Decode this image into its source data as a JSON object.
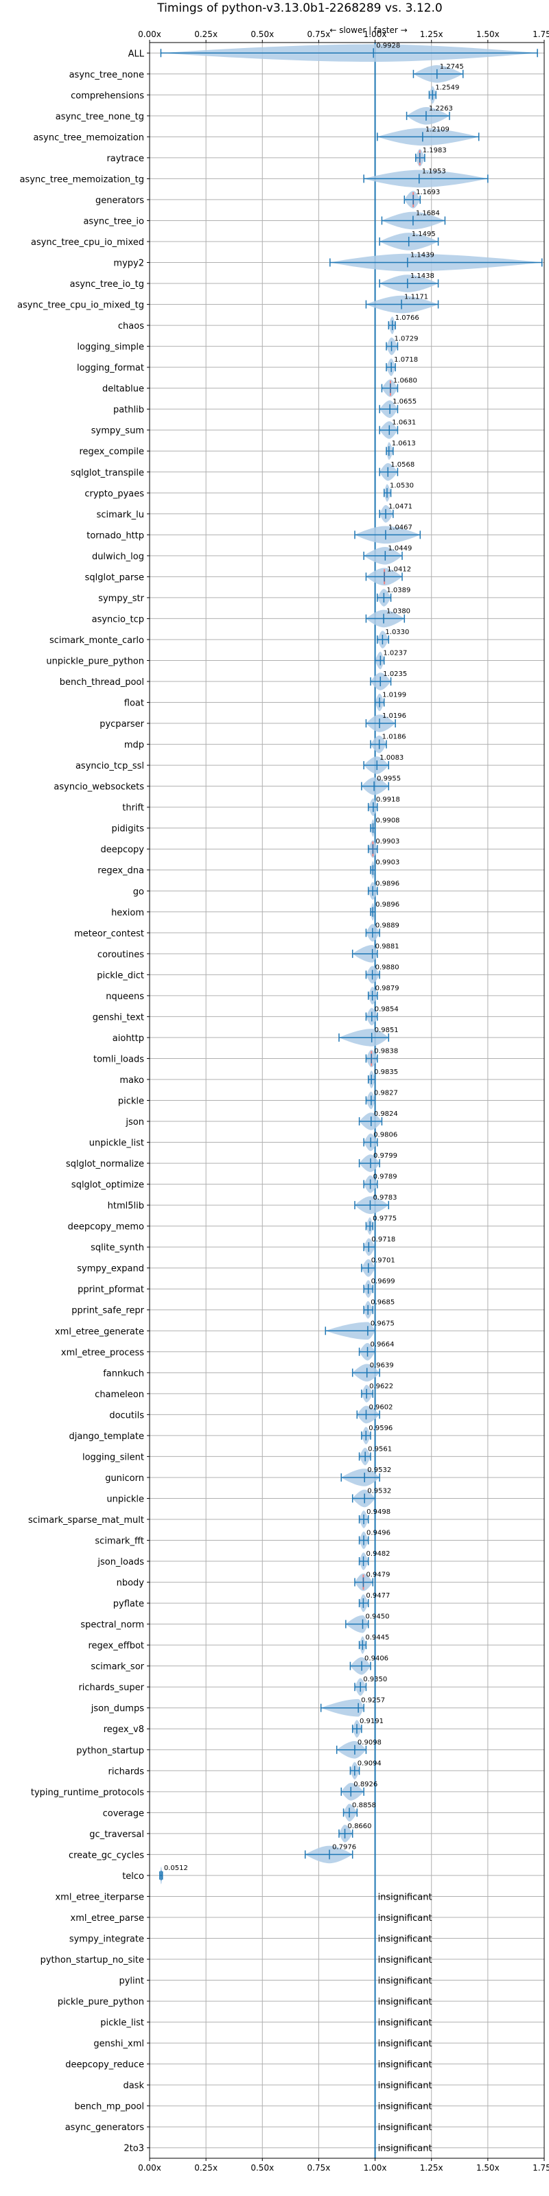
{
  "chart_data": {
    "type": "violin",
    "title": "Timings of python-v3.13.0b1-2268289 vs. 3.12.0",
    "direction_label": "← slower | faster →",
    "xlim": [
      0.0,
      1.75
    ],
    "x_ticks": [
      0.0,
      0.25,
      0.5,
      0.75,
      1.0,
      1.25,
      1.5,
      1.75
    ],
    "x_tick_labels": [
      "0.00x",
      "0.25x",
      "0.50x",
      "0.75x",
      "1.00x",
      "1.25x",
      "1.50x",
      "1.75x"
    ],
    "grid": true,
    "reference_line": 1.0,
    "benchmarks": [
      {
        "name": "ALL",
        "value": 0.9928,
        "min": 0.05,
        "max": 1.72,
        "label": "0.9928"
      },
      {
        "name": "async_tree_none",
        "value": 1.2745,
        "min": 1.17,
        "max": 1.39,
        "label": "1.2745"
      },
      {
        "name": "comprehensions",
        "value": 1.2549,
        "min": 1.24,
        "max": 1.27,
        "label": "1.2549"
      },
      {
        "name": "async_tree_none_tg",
        "value": 1.2263,
        "min": 1.14,
        "max": 1.33,
        "label": "1.2263"
      },
      {
        "name": "async_tree_memoization",
        "value": 1.2109,
        "min": 1.01,
        "max": 1.46,
        "label": "1.2109"
      },
      {
        "name": "raytrace",
        "value": 1.1983,
        "min": 1.18,
        "max": 1.22,
        "label": "1.1983"
      },
      {
        "name": "async_tree_memoization_tg",
        "value": 1.1953,
        "min": 0.95,
        "max": 1.5,
        "label": "1.1953"
      },
      {
        "name": "generators",
        "value": 1.1693,
        "min": 1.13,
        "max": 1.2,
        "label": "1.1693"
      },
      {
        "name": "async_tree_io",
        "value": 1.1684,
        "min": 1.03,
        "max": 1.31,
        "label": "1.1684"
      },
      {
        "name": "async_tree_cpu_io_mixed",
        "value": 1.1495,
        "min": 1.02,
        "max": 1.28,
        "label": "1.1495"
      },
      {
        "name": "mypy2",
        "value": 1.1439,
        "min": 0.8,
        "max": 1.74,
        "label": "1.1439"
      },
      {
        "name": "async_tree_io_tg",
        "value": 1.1438,
        "min": 1.02,
        "max": 1.28,
        "label": "1.1438"
      },
      {
        "name": "async_tree_cpu_io_mixed_tg",
        "value": 1.1171,
        "min": 0.96,
        "max": 1.28,
        "label": "1.1171"
      },
      {
        "name": "chaos",
        "value": 1.0766,
        "min": 1.06,
        "max": 1.09,
        "label": "1.0766"
      },
      {
        "name": "logging_simple",
        "value": 1.0729,
        "min": 1.05,
        "max": 1.1,
        "label": "1.0729"
      },
      {
        "name": "logging_format",
        "value": 1.0718,
        "min": 1.05,
        "max": 1.09,
        "label": "1.0718"
      },
      {
        "name": "deltablue",
        "value": 1.068,
        "min": 1.03,
        "max": 1.1,
        "label": "1.0680"
      },
      {
        "name": "pathlib",
        "value": 1.0655,
        "min": 1.02,
        "max": 1.1,
        "label": "1.0655"
      },
      {
        "name": "sympy_sum",
        "value": 1.0631,
        "min": 1.02,
        "max": 1.1,
        "label": "1.0631"
      },
      {
        "name": "regex_compile",
        "value": 1.0613,
        "min": 1.05,
        "max": 1.08,
        "label": "1.0613"
      },
      {
        "name": "sqlglot_transpile",
        "value": 1.0568,
        "min": 1.02,
        "max": 1.1,
        "label": "1.0568"
      },
      {
        "name": "crypto_pyaes",
        "value": 1.053,
        "min": 1.04,
        "max": 1.07,
        "label": "1.0530"
      },
      {
        "name": "scimark_lu",
        "value": 1.0471,
        "min": 1.02,
        "max": 1.08,
        "label": "1.0471"
      },
      {
        "name": "tornado_http",
        "value": 1.0467,
        "min": 0.91,
        "max": 1.2,
        "label": "1.0467"
      },
      {
        "name": "dulwich_log",
        "value": 1.0449,
        "min": 0.95,
        "max": 1.12,
        "label": "1.0449"
      },
      {
        "name": "sqlglot_parse",
        "value": 1.0412,
        "min": 0.96,
        "max": 1.12,
        "label": "1.0412"
      },
      {
        "name": "sympy_str",
        "value": 1.0389,
        "min": 1.01,
        "max": 1.07,
        "label": "1.0389"
      },
      {
        "name": "asyncio_tcp",
        "value": 1.038,
        "min": 0.96,
        "max": 1.13,
        "label": "1.0380"
      },
      {
        "name": "scimark_monte_carlo",
        "value": 1.033,
        "min": 1.01,
        "max": 1.06,
        "label": "1.0330"
      },
      {
        "name": "unpickle_pure_python",
        "value": 1.0237,
        "min": 1.0,
        "max": 1.04,
        "label": "1.0237"
      },
      {
        "name": "bench_thread_pool",
        "value": 1.0235,
        "min": 0.98,
        "max": 1.07,
        "label": "1.0235"
      },
      {
        "name": "float",
        "value": 1.0199,
        "min": 1.0,
        "max": 1.04,
        "label": "1.0199"
      },
      {
        "name": "pycparser",
        "value": 1.0196,
        "min": 0.96,
        "max": 1.09,
        "label": "1.0196"
      },
      {
        "name": "mdp",
        "value": 1.0186,
        "min": 0.98,
        "max": 1.05,
        "label": "1.0186"
      },
      {
        "name": "asyncio_tcp_ssl",
        "value": 1.0083,
        "min": 0.95,
        "max": 1.06,
        "label": "1.0083"
      },
      {
        "name": "asyncio_websockets",
        "value": 0.9955,
        "min": 0.94,
        "max": 1.06,
        "label": "0.9955"
      },
      {
        "name": "thrift",
        "value": 0.9918,
        "min": 0.97,
        "max": 1.01,
        "label": "0.9918"
      },
      {
        "name": "pidigits",
        "value": 0.9908,
        "min": 0.98,
        "max": 1.0,
        "label": "0.9908"
      },
      {
        "name": "deepcopy",
        "value": 0.9903,
        "min": 0.97,
        "max": 1.01,
        "label": "0.9903"
      },
      {
        "name": "regex_dna",
        "value": 0.9903,
        "min": 0.98,
        "max": 1.0,
        "label": "0.9903"
      },
      {
        "name": "go",
        "value": 0.9896,
        "min": 0.97,
        "max": 1.01,
        "label": "0.9896"
      },
      {
        "name": "hexiom",
        "value": 0.9896,
        "min": 0.98,
        "max": 1.0,
        "label": "0.9896"
      },
      {
        "name": "meteor_contest",
        "value": 0.9889,
        "min": 0.96,
        "max": 1.02,
        "label": "0.9889"
      },
      {
        "name": "coroutines",
        "value": 0.9881,
        "min": 0.9,
        "max": 1.01,
        "label": "0.9881"
      },
      {
        "name": "pickle_dict",
        "value": 0.988,
        "min": 0.96,
        "max": 1.02,
        "label": "0.9880"
      },
      {
        "name": "nqueens",
        "value": 0.9879,
        "min": 0.97,
        "max": 1.01,
        "label": "0.9879"
      },
      {
        "name": "genshi_text",
        "value": 0.9854,
        "min": 0.96,
        "max": 1.01,
        "label": "0.9854"
      },
      {
        "name": "aiohttp",
        "value": 0.9851,
        "min": 0.84,
        "max": 1.06,
        "label": "0.9851"
      },
      {
        "name": "tomli_loads",
        "value": 0.9838,
        "min": 0.96,
        "max": 1.01,
        "label": "0.9838"
      },
      {
        "name": "mako",
        "value": 0.9835,
        "min": 0.97,
        "max": 1.0,
        "label": "0.9835"
      },
      {
        "name": "pickle",
        "value": 0.9827,
        "min": 0.96,
        "max": 1.0,
        "label": "0.9827"
      },
      {
        "name": "json",
        "value": 0.9824,
        "min": 0.93,
        "max": 1.03,
        "label": "0.9824"
      },
      {
        "name": "unpickle_list",
        "value": 0.9806,
        "min": 0.95,
        "max": 1.01,
        "label": "0.9806"
      },
      {
        "name": "sqlglot_normalize",
        "value": 0.9799,
        "min": 0.93,
        "max": 1.02,
        "label": "0.9799"
      },
      {
        "name": "sqlglot_optimize",
        "value": 0.9789,
        "min": 0.95,
        "max": 1.01,
        "label": "0.9789"
      },
      {
        "name": "html5lib",
        "value": 0.9783,
        "min": 0.91,
        "max": 1.06,
        "label": "0.9783"
      },
      {
        "name": "deepcopy_memo",
        "value": 0.9775,
        "min": 0.96,
        "max": 0.99,
        "label": "0.9775"
      },
      {
        "name": "sqlite_synth",
        "value": 0.9718,
        "min": 0.95,
        "max": 1.0,
        "label": "0.9718"
      },
      {
        "name": "sympy_expand",
        "value": 0.9701,
        "min": 0.94,
        "max": 1.0,
        "label": "0.9701"
      },
      {
        "name": "pprint_pformat",
        "value": 0.9699,
        "min": 0.95,
        "max": 0.99,
        "label": "0.9699"
      },
      {
        "name": "pprint_safe_repr",
        "value": 0.9685,
        "min": 0.95,
        "max": 0.99,
        "label": "0.9685"
      },
      {
        "name": "xml_etree_generate",
        "value": 0.9675,
        "min": 0.78,
        "max": 1.0,
        "label": "0.9675"
      },
      {
        "name": "xml_etree_process",
        "value": 0.9664,
        "min": 0.93,
        "max": 1.0,
        "label": "0.9664"
      },
      {
        "name": "fannkuch",
        "value": 0.9639,
        "min": 0.9,
        "max": 1.02,
        "label": "0.9639"
      },
      {
        "name": "chameleon",
        "value": 0.9622,
        "min": 0.94,
        "max": 0.99,
        "label": "0.9622"
      },
      {
        "name": "docutils",
        "value": 0.9602,
        "min": 0.92,
        "max": 1.02,
        "label": "0.9602"
      },
      {
        "name": "django_template",
        "value": 0.9596,
        "min": 0.94,
        "max": 0.98,
        "label": "0.9596"
      },
      {
        "name": "logging_silent",
        "value": 0.9561,
        "min": 0.93,
        "max": 0.98,
        "label": "0.9561"
      },
      {
        "name": "gunicorn",
        "value": 0.9532,
        "min": 0.85,
        "max": 1.02,
        "label": "0.9532"
      },
      {
        "name": "unpickle",
        "value": 0.9532,
        "min": 0.9,
        "max": 1.0,
        "label": "0.9532"
      },
      {
        "name": "scimark_sparse_mat_mult",
        "value": 0.9498,
        "min": 0.93,
        "max": 0.97,
        "label": "0.9498"
      },
      {
        "name": "scimark_fft",
        "value": 0.9496,
        "min": 0.93,
        "max": 0.97,
        "label": "0.9496"
      },
      {
        "name": "json_loads",
        "value": 0.9482,
        "min": 0.93,
        "max": 0.97,
        "label": "0.9482"
      },
      {
        "name": "nbody",
        "value": 0.9479,
        "min": 0.91,
        "max": 0.99,
        "label": "0.9479"
      },
      {
        "name": "pyflate",
        "value": 0.9477,
        "min": 0.93,
        "max": 0.97,
        "label": "0.9477"
      },
      {
        "name": "spectral_norm",
        "value": 0.945,
        "min": 0.87,
        "max": 0.97,
        "label": "0.9450"
      },
      {
        "name": "regex_effbot",
        "value": 0.9445,
        "min": 0.93,
        "max": 0.96,
        "label": "0.9445"
      },
      {
        "name": "scimark_sor",
        "value": 0.9406,
        "min": 0.89,
        "max": 0.98,
        "label": "0.9406"
      },
      {
        "name": "richards_super",
        "value": 0.935,
        "min": 0.91,
        "max": 0.96,
        "label": "0.9350"
      },
      {
        "name": "json_dumps",
        "value": 0.9257,
        "min": 0.76,
        "max": 0.95,
        "label": "0.9257"
      },
      {
        "name": "regex_v8",
        "value": 0.9191,
        "min": 0.9,
        "max": 0.94,
        "label": "0.9191"
      },
      {
        "name": "python_startup",
        "value": 0.9098,
        "min": 0.83,
        "max": 0.96,
        "label": "0.9098"
      },
      {
        "name": "richards",
        "value": 0.9094,
        "min": 0.89,
        "max": 0.93,
        "label": "0.9094"
      },
      {
        "name": "typing_runtime_protocols",
        "value": 0.8926,
        "min": 0.85,
        "max": 0.95,
        "label": "0.8926"
      },
      {
        "name": "coverage",
        "value": 0.8858,
        "min": 0.86,
        "max": 0.92,
        "label": "0.8858"
      },
      {
        "name": "gc_traversal",
        "value": 0.866,
        "min": 0.84,
        "max": 0.9,
        "label": "0.8660"
      },
      {
        "name": "create_gc_cycles",
        "value": 0.7976,
        "min": 0.69,
        "max": 0.9,
        "label": "0.7976"
      },
      {
        "name": "telco",
        "value": 0.0512,
        "min": 0.045,
        "max": 0.057,
        "label": "0.0512"
      },
      {
        "name": "xml_etree_iterparse",
        "value": null,
        "label": "insignificant"
      },
      {
        "name": "xml_etree_parse",
        "value": null,
        "label": "insignificant"
      },
      {
        "name": "sympy_integrate",
        "value": null,
        "label": "insignificant"
      },
      {
        "name": "python_startup_no_site",
        "value": null,
        "label": "insignificant"
      },
      {
        "name": "pylint",
        "value": null,
        "label": "insignificant"
      },
      {
        "name": "pickle_pure_python",
        "value": null,
        "label": "insignificant"
      },
      {
        "name": "pickle_list",
        "value": null,
        "label": "insignificant"
      },
      {
        "name": "genshi_xml",
        "value": null,
        "label": "insignificant"
      },
      {
        "name": "deepcopy_reduce",
        "value": null,
        "label": "insignificant"
      },
      {
        "name": "dask",
        "value": null,
        "label": "insignificant"
      },
      {
        "name": "bench_mp_pool",
        "value": null,
        "label": "insignificant"
      },
      {
        "name": "async_generators",
        "value": null,
        "label": "insignificant"
      },
      {
        "name": "2to3",
        "value": null,
        "label": "insignificant"
      }
    ],
    "highlighted_medians": [
      "raytrace",
      "generators",
      "deltablue",
      "sqlglot_parse",
      "deepcopy",
      "tomli_loads",
      "nbody"
    ],
    "colors": {
      "violin_fill": "#aecbe6",
      "whisker": "#1f77b4",
      "median_highlight": "#f08080",
      "grid": "#b0b0b0",
      "ref_line": "#1f77b4"
    }
  }
}
